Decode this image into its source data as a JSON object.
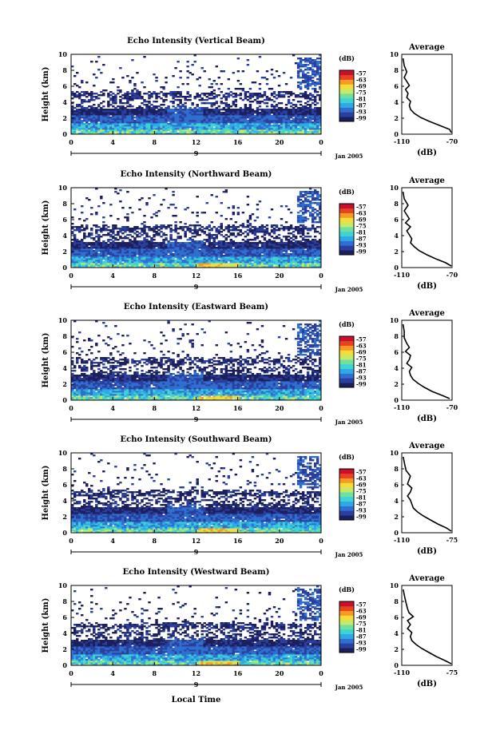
{
  "colors": {
    "scale": [
      "#1c1f5e",
      "#2b3f9e",
      "#2f6fd0",
      "#2fa8e6",
      "#3fd3d3",
      "#6fe0a0",
      "#c7e96a",
      "#f5dc3a",
      "#f59a24",
      "#e8431e",
      "#c8102e"
    ],
    "line": "#000000"
  },
  "colorbar": {
    "unit": "(dB)",
    "ticks_default": [
      "-57",
      "-63",
      "-69",
      "-75",
      "-81",
      "-87",
      "-93",
      "-99"
    ],
    "ticks_south": [
      "-57",
      "-63",
      "-69",
      "-75",
      "-81",
      "-87",
      "-93",
      "-99"
    ]
  },
  "date_label": "Jan 2005",
  "date_marker": "9",
  "xlabel": "Local Time",
  "ylabel": "Height (km)",
  "profile": {
    "title": "Average",
    "xlabel": "(dB)"
  },
  "chart_data": [
    {
      "type": "heatmap",
      "title": "Echo Intensity (Vertical Beam)",
      "x_ticks": [
        "0",
        "4",
        "8",
        "12",
        "16",
        "20",
        "0"
      ],
      "y_ticks": [
        "0",
        "2",
        "4",
        "6",
        "8",
        "10"
      ],
      "xlim": [
        0,
        24
      ],
      "ylim": [
        0,
        10
      ],
      "profile": {
        "type": "line",
        "title": "Average",
        "x_ticks": [
          "-110",
          "-70"
        ],
        "y_ticks": [
          "0",
          "2",
          "4",
          "6",
          "8",
          "10"
        ],
        "xlim": [
          -110,
          -70
        ],
        "ylim": [
          0,
          10
        ],
        "x": [
          -68,
          -72,
          -80,
          -88,
          -95,
          -100,
          -103,
          -104,
          -103,
          -106,
          -105,
          -107,
          -104,
          -106,
          -108,
          -106,
          -108,
          -109
        ],
        "y": [
          0.2,
          0.6,
          1.1,
          1.6,
          2.1,
          2.6,
          3.1,
          3.6,
          4.1,
          4.6,
          5.1,
          5.6,
          6.1,
          6.6,
          7.1,
          7.8,
          8.6,
          9.5
        ]
      }
    },
    {
      "type": "heatmap",
      "title": "Echo Intensity (Northward Beam)",
      "x_ticks": [
        "0",
        "4",
        "8",
        "12",
        "16",
        "20",
        "0"
      ],
      "y_ticks": [
        "0",
        "2",
        "4",
        "6",
        "8",
        "10"
      ],
      "xlim": [
        0,
        24
      ],
      "ylim": [
        0,
        10
      ],
      "profile": {
        "type": "line",
        "title": "Average",
        "x_ticks": [
          "-110",
          "-70"
        ],
        "y_ticks": [
          "0",
          "2",
          "4",
          "6",
          "8",
          "10"
        ],
        "xlim": [
          -110,
          -70
        ],
        "ylim": [
          0,
          10
        ],
        "x": [
          -70,
          -75,
          -83,
          -90,
          -96,
          -100,
          -103,
          -102,
          -104,
          -106,
          -103,
          -107,
          -104,
          -106,
          -108,
          -105,
          -108,
          -109
        ],
        "y": [
          0.2,
          0.6,
          1.1,
          1.6,
          2.1,
          2.6,
          3.1,
          3.6,
          4.1,
          4.6,
          5.1,
          5.6,
          6.1,
          6.6,
          7.1,
          7.8,
          8.6,
          9.5
        ]
      }
    },
    {
      "type": "heatmap",
      "title": "Echo Intensity (Eastward Beam)",
      "x_ticks": [
        "0",
        "4",
        "8",
        "12",
        "16",
        "20",
        "0"
      ],
      "y_ticks": [
        "0",
        "2",
        "4",
        "6",
        "8",
        "10"
      ],
      "xlim": [
        0,
        24
      ],
      "ylim": [
        0,
        10
      ],
      "profile": {
        "type": "line",
        "title": "Average",
        "x_ticks": [
          "-110",
          "-70"
        ],
        "y_ticks": [
          "0",
          "2",
          "4",
          "6",
          "8",
          "10"
        ],
        "xlim": [
          -110,
          -70
        ],
        "ylim": [
          0,
          10
        ],
        "x": [
          -72,
          -78,
          -86,
          -92,
          -97,
          -101,
          -103,
          -104,
          -102,
          -106,
          -104,
          -103,
          -107,
          -104,
          -106,
          -108,
          -108,
          -109
        ],
        "y": [
          0.2,
          0.6,
          1.1,
          1.6,
          2.1,
          2.6,
          3.1,
          3.6,
          4.1,
          4.6,
          5.1,
          5.6,
          6.1,
          6.6,
          7.1,
          7.8,
          8.6,
          9.5
        ]
      }
    },
    {
      "type": "heatmap",
      "title": "Echo Intensity (Southward Beam)",
      "x_ticks": [
        "0",
        "4",
        "8",
        "12",
        "16",
        "20",
        "0"
      ],
      "y_ticks": [
        "0",
        "2",
        "4",
        "6",
        "8",
        "10"
      ],
      "xlim": [
        0,
        24
      ],
      "ylim": [
        0,
        10
      ],
      "profile": {
        "type": "line",
        "title": "Average",
        "x_ticks": [
          "-110",
          "-75"
        ],
        "y_ticks": [
          "0",
          "2",
          "4",
          "6",
          "8",
          "10"
        ],
        "xlim": [
          -110,
          -75
        ],
        "ylim": [
          0,
          10
        ],
        "x": [
          -74,
          -79,
          -85,
          -90,
          -95,
          -99,
          -102,
          -103,
          -104,
          -106,
          -104,
          -103,
          -106,
          -105,
          -104,
          -107,
          -108,
          -109
        ],
        "y": [
          0.2,
          0.6,
          1.1,
          1.6,
          2.1,
          2.6,
          3.1,
          3.6,
          4.1,
          4.6,
          5.1,
          5.6,
          6.1,
          6.6,
          7.1,
          7.8,
          8.6,
          9.5
        ]
      }
    },
    {
      "type": "heatmap",
      "title": "Echo Intensity (Westward Beam)",
      "x_ticks": [
        "0",
        "4",
        "8",
        "12",
        "16",
        "20",
        "0"
      ],
      "y_ticks": [
        "0",
        "2",
        "4",
        "6",
        "8",
        "10"
      ],
      "xlim": [
        0,
        24
      ],
      "ylim": [
        0,
        10
      ],
      "profile": {
        "type": "line",
        "title": "Average",
        "x_ticks": [
          "-110",
          "-75"
        ],
        "y_ticks": [
          "0",
          "2",
          "4",
          "6",
          "8",
          "10"
        ],
        "xlim": [
          -110,
          -75
        ],
        "ylim": [
          0,
          10
        ],
        "x": [
          -75,
          -80,
          -86,
          -91,
          -96,
          -100,
          -103,
          -104,
          -103,
          -106,
          -104,
          -106,
          -102,
          -105,
          -106,
          -107,
          -108,
          -109
        ],
        "y": [
          0.2,
          0.6,
          1.1,
          1.6,
          2.1,
          2.6,
          3.1,
          3.6,
          4.1,
          4.6,
          5.1,
          5.6,
          6.1,
          6.6,
          7.1,
          7.8,
          8.6,
          9.5
        ]
      }
    }
  ]
}
